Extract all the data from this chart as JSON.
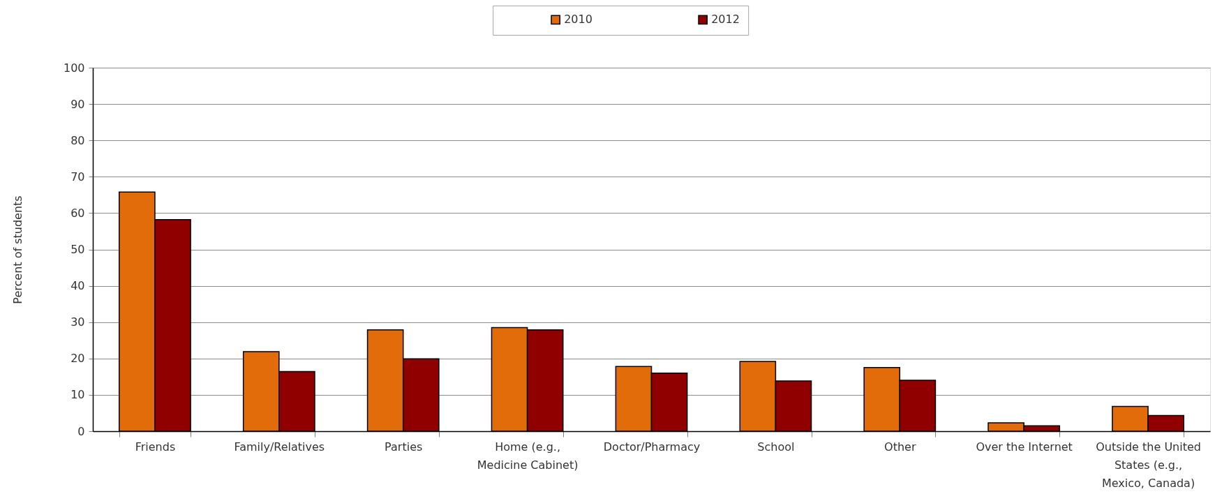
{
  "chart_data": {
    "type": "bar",
    "categories": [
      "Friends",
      "Family/Relatives",
      "Parties",
      "Home (e.g., Medicine Cabinet)",
      "Doctor/Pharmacy",
      "School",
      "Other",
      "Over the Internet",
      "Outside the United States (e.g., Mexico, Canada)"
    ],
    "series": [
      {
        "name": "2010",
        "color": "#e36c0a",
        "values": [
          65.8,
          21.9,
          27.9,
          28.5,
          17.8,
          19.2,
          17.5,
          2.3,
          6.8
        ]
      },
      {
        "name": "2012",
        "color": "#900000",
        "values": [
          58.2,
          16.4,
          19.9,
          27.9,
          16.0,
          13.8,
          14.0,
          1.5,
          4.3
        ]
      }
    ],
    "ylabel": "Percent of students",
    "ylim": [
      0,
      100
    ],
    "yticks": [
      0,
      10,
      20,
      30,
      40,
      50,
      60,
      70,
      80,
      90,
      100
    ],
    "grid": "y",
    "legend": "top"
  }
}
